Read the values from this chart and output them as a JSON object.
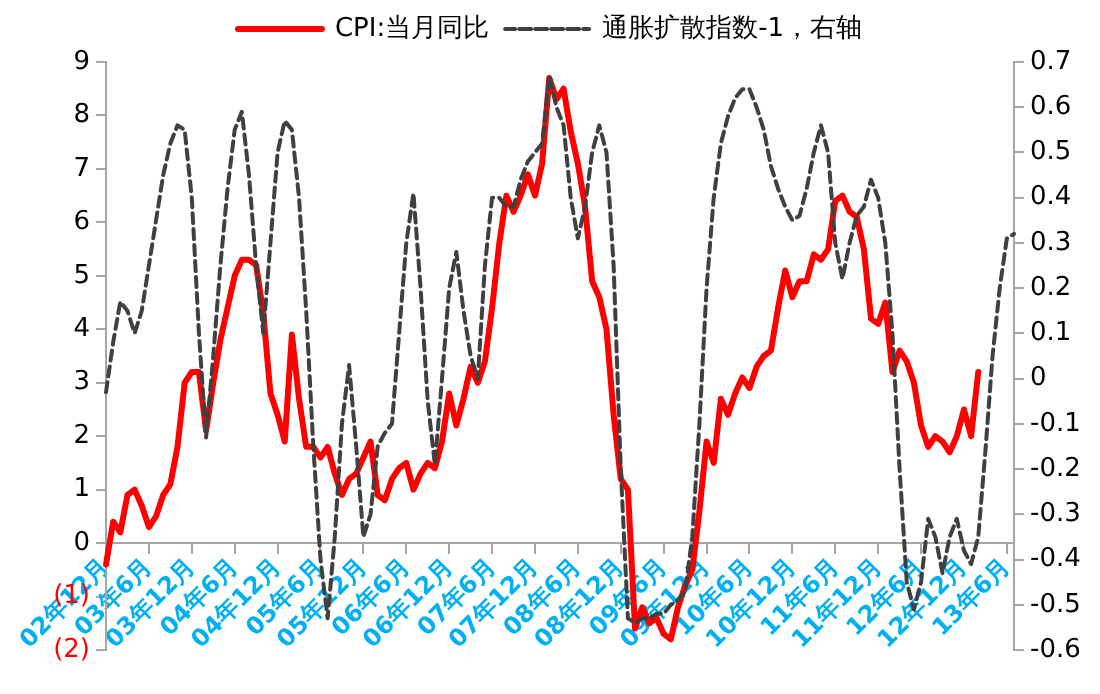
{
  "chart_data": {
    "type": "line",
    "legend": "top",
    "grid": false,
    "marker": "none",
    "categories": [
      "02年12月",
      null,
      null,
      null,
      null,
      null,
      "03年6月",
      null,
      null,
      null,
      null,
      null,
      "03年12月",
      null,
      null,
      null,
      null,
      null,
      "04年6月",
      null,
      null,
      null,
      null,
      null,
      "04年12月",
      null,
      null,
      null,
      null,
      null,
      "05年6月",
      null,
      null,
      null,
      null,
      null,
      "05年12月",
      null,
      null,
      null,
      null,
      null,
      "06年6月",
      null,
      null,
      null,
      null,
      null,
      "06年12月",
      null,
      null,
      null,
      null,
      null,
      "07年6月",
      null,
      null,
      null,
      null,
      null,
      "07年12月",
      null,
      null,
      null,
      null,
      null,
      "08年6月",
      null,
      null,
      null,
      null,
      null,
      "08年12月",
      null,
      null,
      null,
      null,
      null,
      "09年6月",
      null,
      null,
      null,
      null,
      null,
      "09年12月",
      null,
      null,
      null,
      null,
      null,
      "10年6月",
      null,
      null,
      null,
      null,
      null,
      "10年12月",
      null,
      null,
      null,
      null,
      null,
      "11年6月",
      null,
      null,
      null,
      null,
      null,
      "11年12月",
      null,
      null,
      null,
      null,
      null,
      "12年6月",
      null,
      null,
      null,
      null,
      null,
      "12年12月",
      null,
      null,
      null,
      null,
      null,
      "13年6月",
      null
    ],
    "ylim": [
      -2,
      9
    ],
    "yticks": [
      {
        "value": -2,
        "label": "(2)"
      },
      {
        "value": -1,
        "label": "(1)"
      },
      0,
      1,
      2,
      3,
      4,
      5,
      6,
      7,
      8,
      9
    ],
    "y2lim": [
      -0.6,
      0.7
    ],
    "y2ticks": [
      -0.6,
      -0.5,
      -0.4,
      -0.3,
      -0.2,
      -0.1,
      0,
      0.1,
      0.2,
      0.3,
      0.4,
      0.5,
      0.6,
      0.7
    ],
    "series": [
      {
        "name": "CPI:当月同比",
        "color": "#ff0000",
        "line_style": "solid",
        "values": [
          -0.4,
          0.4,
          0.2,
          0.9,
          1.0,
          0.7,
          0.3,
          0.5,
          0.9,
          1.1,
          1.8,
          3.0,
          3.2,
          3.2,
          2.1,
          3.0,
          3.8,
          4.4,
          5.0,
          5.3,
          5.3,
          5.2,
          4.3,
          2.8,
          2.4,
          1.9,
          3.9,
          2.7,
          1.8,
          1.8,
          1.6,
          1.8,
          1.3,
          0.9,
          1.2,
          1.3,
          1.6,
          1.9,
          0.9,
          0.8,
          1.2,
          1.4,
          1.5,
          1.0,
          1.3,
          1.5,
          1.4,
          1.9,
          2.8,
          2.2,
          2.7,
          3.3,
          3.0,
          3.4,
          4.4,
          5.6,
          6.5,
          6.2,
          6.5,
          6.9,
          6.5,
          7.1,
          8.7,
          8.3,
          8.5,
          7.7,
          7.1,
          6.3,
          4.9,
          4.6,
          4.0,
          2.4,
          1.2,
          1.0,
          -1.6,
          -1.2,
          -1.5,
          -1.4,
          -1.7,
          -1.8,
          -1.2,
          -0.8,
          -0.5,
          0.6,
          1.9,
          1.5,
          2.7,
          2.4,
          2.8,
          3.1,
          2.9,
          3.3,
          3.5,
          3.6,
          4.4,
          5.1,
          4.6,
          4.9,
          4.9,
          5.4,
          5.3,
          5.5,
          6.4,
          6.5,
          6.2,
          6.1,
          5.5,
          4.2,
          4.1,
          4.5,
          3.2,
          3.6,
          3.4,
          3.0,
          2.2,
          1.8,
          2.0,
          1.9,
          1.7,
          2.0,
          2.5,
          2.0,
          3.2,
          null,
          null,
          null,
          null,
          null
        ]
      },
      {
        "name": "通胀扩散指数-1，右轴",
        "color": "#404040",
        "line_style": "dashed",
        "axis": "y2",
        "values": [
          -0.03,
          0.08,
          0.17,
          0.15,
          0.1,
          0.15,
          0.25,
          0.35,
          0.45,
          0.52,
          0.56,
          0.55,
          0.4,
          0.1,
          -0.13,
          0.05,
          0.25,
          0.42,
          0.55,
          0.59,
          0.45,
          0.25,
          0.1,
          0.3,
          0.5,
          0.57,
          0.55,
          0.4,
          0.15,
          -0.15,
          -0.4,
          -0.53,
          -0.35,
          -0.1,
          0.03,
          -0.15,
          -0.35,
          -0.3,
          -0.15,
          -0.12,
          -0.1,
          0.1,
          0.3,
          0.41,
          0.2,
          -0.05,
          -0.19,
          0.0,
          0.2,
          0.28,
          0.15,
          0.05,
          0.0,
          0.25,
          0.4,
          0.4,
          0.38,
          0.38,
          0.44,
          0.48,
          0.5,
          0.52,
          0.67,
          0.6,
          0.56,
          0.4,
          0.31,
          0.38,
          0.5,
          0.56,
          0.5,
          0.25,
          -0.2,
          -0.53,
          -0.54,
          -0.53,
          -0.53,
          -0.52,
          -0.52,
          -0.5,
          -0.49,
          -0.47,
          -0.35,
          -0.1,
          0.2,
          0.4,
          0.52,
          0.58,
          0.62,
          0.64,
          0.64,
          0.6,
          0.55,
          0.47,
          0.42,
          0.38,
          0.35,
          0.36,
          0.42,
          0.5,
          0.56,
          0.5,
          0.3,
          0.22,
          0.3,
          0.36,
          0.38,
          0.44,
          0.4,
          0.3,
          0.1,
          -0.2,
          -0.45,
          -0.51,
          -0.45,
          -0.31,
          -0.35,
          -0.43,
          -0.35,
          -0.31,
          -0.38,
          -0.41,
          -0.35,
          -0.16,
          0.05,
          0.2,
          0.31,
          0.32
        ]
      }
    ]
  }
}
